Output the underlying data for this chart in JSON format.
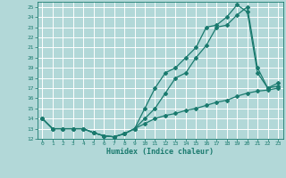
{
  "xlabel": "Humidex (Indice chaleur)",
  "bg_color": "#b2d8d8",
  "line_color": "#1a7a6e",
  "grid_color": "#c8e8e8",
  "xlim": [
    -0.5,
    23.5
  ],
  "ylim": [
    12,
    25.5
  ],
  "yticks": [
    12,
    13,
    14,
    15,
    16,
    17,
    18,
    19,
    20,
    21,
    22,
    23,
    24,
    25
  ],
  "xticks": [
    0,
    1,
    2,
    3,
    4,
    5,
    6,
    7,
    8,
    9,
    10,
    11,
    12,
    13,
    14,
    15,
    16,
    17,
    18,
    19,
    20,
    21,
    22,
    23
  ],
  "line1_x": [
    0,
    1,
    2,
    3,
    4,
    5,
    6,
    7,
    8,
    9,
    10,
    11,
    12,
    13,
    14,
    15,
    16,
    17,
    18,
    19,
    20,
    21,
    22,
    23
  ],
  "line1_y": [
    14.0,
    13.0,
    13.0,
    13.0,
    13.0,
    12.6,
    12.3,
    12.2,
    12.5,
    13.0,
    15.0,
    17.0,
    18.5,
    19.0,
    20.0,
    21.0,
    23.0,
    23.2,
    24.0,
    25.2,
    24.5,
    18.5,
    17.0,
    17.2
  ],
  "line2_x": [
    0,
    1,
    2,
    3,
    4,
    5,
    6,
    7,
    8,
    9,
    10,
    11,
    12,
    13,
    14,
    15,
    16,
    17,
    18,
    19,
    20,
    21,
    22,
    23
  ],
  "line2_y": [
    14.0,
    13.0,
    13.0,
    13.0,
    13.0,
    12.6,
    12.3,
    12.2,
    12.5,
    13.0,
    14.0,
    15.0,
    16.5,
    18.0,
    18.5,
    20.0,
    21.2,
    23.0,
    23.2,
    24.2,
    25.0,
    19.0,
    17.0,
    17.5
  ],
  "line3_x": [
    0,
    1,
    2,
    3,
    4,
    5,
    6,
    7,
    8,
    9,
    10,
    11,
    12,
    13,
    14,
    15,
    16,
    17,
    18,
    19,
    20,
    21,
    22,
    23
  ],
  "line3_y": [
    14.0,
    13.0,
    13.0,
    13.0,
    13.0,
    12.6,
    12.3,
    12.2,
    12.5,
    13.0,
    13.5,
    14.0,
    14.3,
    14.5,
    14.8,
    15.0,
    15.3,
    15.6,
    15.8,
    16.2,
    16.5,
    16.7,
    16.8,
    17.0
  ],
  "marker": "D",
  "marker_size": 2.0,
  "line_width": 0.9
}
